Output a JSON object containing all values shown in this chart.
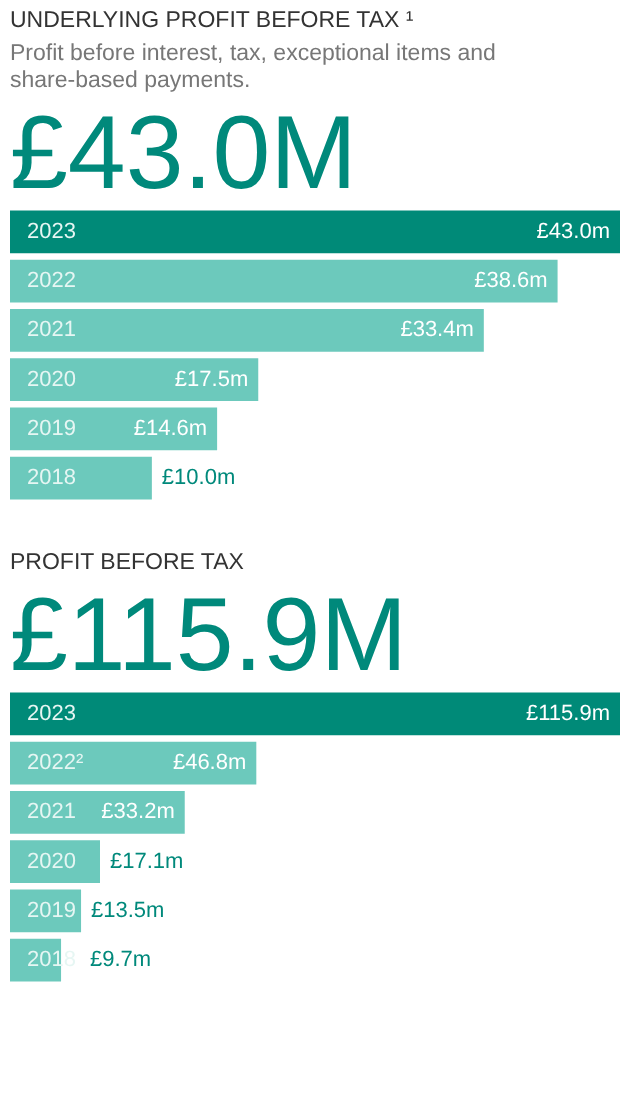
{
  "chart_data": [
    {
      "type": "bar",
      "orientation": "horizontal",
      "title": "UNDERLYING PROFIT BEFORE TAX ¹",
      "subtitle": "Profit before interest, tax, exceptional items and share-based payments.",
      "annotations": [
        "£43.0M"
      ],
      "categories": [
        "2023",
        "2022",
        "2021",
        "2020",
        "2019",
        "2018"
      ],
      "values": [
        43.0,
        38.6,
        33.4,
        17.5,
        14.6,
        10.0
      ],
      "colors": [
        "#008a78",
        "#6cc9bc",
        "#6cc9bc",
        "#6cc9bc",
        "#6cc9bc",
        "#6cc9bc"
      ],
      "value_labels": [
        "£43.0m",
        "£38.6m",
        "£33.4m",
        "£17.5m",
        "£14.6m",
        "£10.0m"
      ]
    },
    {
      "type": "bar",
      "orientation": "horizontal",
      "title": "PROFIT BEFORE TAX",
      "annotations": [
        "£115.9M"
      ],
      "categories": [
        "2023",
        "2022²",
        "2021",
        "2020",
        "2019",
        "2018"
      ],
      "values": [
        115.9,
        46.8,
        33.2,
        17.1,
        13.5,
        9.7
      ],
      "colors": [
        "#008a78",
        "#6cc9bc",
        "#6cc9bc",
        "#6cc9bc",
        "#6cc9bc",
        "#6cc9bc"
      ],
      "value_labels": [
        "£115.9m",
        "£46.8m",
        "£33.2m",
        "£17.1m",
        "£13.5m",
        "£9.7m"
      ]
    }
  ]
}
